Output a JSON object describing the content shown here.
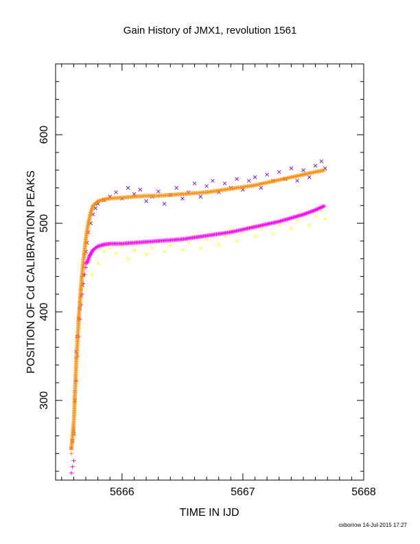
{
  "chart_data": {
    "type": "scatter",
    "title": "Gain History of JMX1, revolution 1561",
    "xlabel": "TIME IN IJD",
    "ylabel": "POSITION OF Cd CALIBRATION PEAKS",
    "xlim": [
      5665.45,
      5668.0
    ],
    "ylim": [
      210,
      680
    ],
    "xticks": [
      5666,
      5667,
      5668
    ],
    "xtick_labels": [
      "5666",
      "5667",
      "5668"
    ],
    "yticks": [
      300,
      400,
      500,
      600
    ],
    "ytick_labels": [
      "300",
      "400",
      "500",
      "600"
    ],
    "grid": false,
    "legend": "none",
    "series": [
      {
        "marker": "x",
        "color": "#7b1fd6",
        "points": [
          [
            5665.58,
            246
          ],
          [
            5665.59,
            254
          ],
          [
            5665.6,
            262
          ],
          [
            5665.6,
            266
          ],
          [
            5665.61,
            300
          ],
          [
            5665.62,
            355
          ],
          [
            5665.63,
            372
          ],
          [
            5665.64,
            392
          ],
          [
            5665.65,
            404
          ],
          [
            5665.66,
            418
          ],
          [
            5665.67,
            430
          ],
          [
            5665.68,
            442
          ],
          [
            5665.69,
            455
          ],
          [
            5665.7,
            468
          ],
          [
            5665.71,
            478
          ],
          [
            5665.72,
            490
          ],
          [
            5665.74,
            500
          ],
          [
            5665.76,
            510
          ],
          [
            5665.78,
            517
          ],
          [
            5665.8,
            522
          ],
          [
            5665.85,
            526
          ],
          [
            5665.9,
            530
          ],
          [
            5665.95,
            535
          ],
          [
            5666.0,
            528
          ],
          [
            5666.05,
            540
          ],
          [
            5666.1,
            533
          ],
          [
            5666.15,
            538
          ],
          [
            5666.2,
            525
          ],
          [
            5666.25,
            530
          ],
          [
            5666.3,
            536
          ],
          [
            5666.35,
            522
          ],
          [
            5666.4,
            532
          ],
          [
            5666.45,
            540
          ],
          [
            5666.5,
            528
          ],
          [
            5666.55,
            535
          ],
          [
            5666.6,
            545
          ],
          [
            5666.65,
            530
          ],
          [
            5666.7,
            542
          ],
          [
            5666.75,
            548
          ],
          [
            5666.8,
            535
          ],
          [
            5666.85,
            545
          ],
          [
            5666.9,
            540
          ],
          [
            5666.95,
            550
          ],
          [
            5667.0,
            538
          ],
          [
            5667.05,
            548
          ],
          [
            5667.1,
            552
          ],
          [
            5667.15,
            540
          ],
          [
            5667.2,
            555
          ],
          [
            5667.25,
            548
          ],
          [
            5667.3,
            558
          ],
          [
            5667.35,
            550
          ],
          [
            5667.4,
            562
          ],
          [
            5667.45,
            548
          ],
          [
            5667.5,
            560
          ],
          [
            5667.55,
            552
          ],
          [
            5667.6,
            565
          ],
          [
            5667.65,
            570
          ],
          [
            5667.68,
            562
          ]
        ],
        "trend": [
          [
            5665.58,
            245
          ],
          [
            5665.6,
            275
          ],
          [
            5665.62,
            340
          ],
          [
            5665.64,
            390
          ],
          [
            5665.66,
            428
          ],
          [
            5665.68,
            458
          ],
          [
            5665.7,
            482
          ],
          [
            5665.72,
            500
          ],
          [
            5665.74,
            512
          ],
          [
            5665.76,
            520
          ],
          [
            5665.8,
            525
          ],
          [
            5665.85,
            527
          ],
          [
            5665.9,
            528
          ],
          [
            5666.0,
            529
          ],
          [
            5666.1,
            530
          ],
          [
            5666.2,
            531
          ],
          [
            5666.3,
            531
          ],
          [
            5666.4,
            532
          ],
          [
            5666.5,
            533
          ],
          [
            5666.6,
            534
          ],
          [
            5666.7,
            535
          ],
          [
            5666.8,
            537
          ],
          [
            5666.9,
            539
          ],
          [
            5667.0,
            541
          ],
          [
            5667.1,
            543
          ],
          [
            5667.2,
            546
          ],
          [
            5667.3,
            549
          ],
          [
            5667.4,
            552
          ],
          [
            5667.5,
            555
          ],
          [
            5667.6,
            558
          ],
          [
            5667.68,
            560
          ]
        ]
      },
      {
        "marker": "x",
        "color": "#ffff33",
        "points": [
          [
            5665.75,
            442
          ],
          [
            5665.8,
            455
          ],
          [
            5665.85,
            468
          ],
          [
            5665.9,
            472
          ],
          [
            5665.95,
            466
          ],
          [
            5666.0,
            474
          ],
          [
            5666.05,
            460
          ],
          [
            5666.1,
            470
          ],
          [
            5666.15,
            478
          ],
          [
            5666.2,
            465
          ],
          [
            5666.25,
            472
          ],
          [
            5666.3,
            480
          ],
          [
            5666.35,
            468
          ],
          [
            5666.4,
            475
          ],
          [
            5666.45,
            482
          ],
          [
            5666.5,
            470
          ],
          [
            5666.55,
            478
          ],
          [
            5666.6,
            485
          ],
          [
            5666.65,
            472
          ],
          [
            5666.7,
            482
          ],
          [
            5666.75,
            488
          ],
          [
            5666.8,
            476
          ],
          [
            5666.85,
            485
          ],
          [
            5666.9,
            492
          ],
          [
            5666.95,
            480
          ],
          [
            5667.0,
            490
          ],
          [
            5667.05,
            496
          ],
          [
            5667.1,
            485
          ],
          [
            5667.15,
            494
          ],
          [
            5667.2,
            500
          ],
          [
            5667.25,
            488
          ],
          [
            5667.3,
            498
          ],
          [
            5667.35,
            505
          ],
          [
            5667.4,
            494
          ],
          [
            5667.45,
            503
          ],
          [
            5667.5,
            510
          ],
          [
            5667.55,
            498
          ],
          [
            5667.6,
            508
          ],
          [
            5667.65,
            515
          ],
          [
            5667.68,
            505
          ]
        ]
      },
      {
        "marker": "+",
        "color": "#ff00ff",
        "points": [
          [
            5665.58,
            218
          ],
          [
            5665.59,
            225
          ],
          [
            5665.6,
            232
          ],
          [
            5665.61,
            310
          ],
          [
            5665.62,
            322
          ],
          [
            5665.63,
            350
          ],
          [
            5665.64,
            372
          ],
          [
            5665.65,
            392
          ],
          [
            5665.66,
            408
          ],
          [
            5665.67,
            420
          ],
          [
            5665.68,
            432
          ],
          [
            5665.69,
            442
          ],
          [
            5665.7,
            450
          ],
          [
            5665.71,
            456
          ]
        ],
        "trend": [
          [
            5665.71,
            455
          ],
          [
            5665.73,
            463
          ],
          [
            5665.76,
            470
          ],
          [
            5665.8,
            474
          ],
          [
            5665.85,
            476
          ],
          [
            5665.9,
            477
          ],
          [
            5666.0,
            477
          ],
          [
            5666.1,
            478
          ],
          [
            5666.2,
            479
          ],
          [
            5666.3,
            480
          ],
          [
            5666.4,
            481
          ],
          [
            5666.5,
            482
          ],
          [
            5666.6,
            484
          ],
          [
            5666.7,
            486
          ],
          [
            5666.8,
            488
          ],
          [
            5666.9,
            490
          ],
          [
            5667.0,
            493
          ],
          [
            5667.1,
            496
          ],
          [
            5667.2,
            499
          ],
          [
            5667.3,
            502
          ],
          [
            5667.4,
            506
          ],
          [
            5667.5,
            510
          ],
          [
            5667.6,
            515
          ],
          [
            5667.68,
            520
          ]
        ]
      },
      {
        "marker": "+",
        "color": "#ff8c00",
        "points": [
          [
            5665.58,
            240
          ],
          [
            5665.59,
            255
          ],
          [
            5665.6,
            262
          ],
          [
            5665.6,
            270
          ],
          [
            5665.61,
            298
          ],
          [
            5665.62,
            348
          ],
          [
            5665.63,
            372
          ],
          [
            5665.64,
            395
          ],
          [
            5665.65,
            410
          ],
          [
            5665.66,
            425
          ],
          [
            5665.67,
            440
          ],
          [
            5665.68,
            452
          ],
          [
            5665.69,
            465
          ],
          [
            5665.7,
            478
          ]
        ]
      }
    ]
  },
  "footer": "oxborrow 14-Jul-2015 17:27"
}
